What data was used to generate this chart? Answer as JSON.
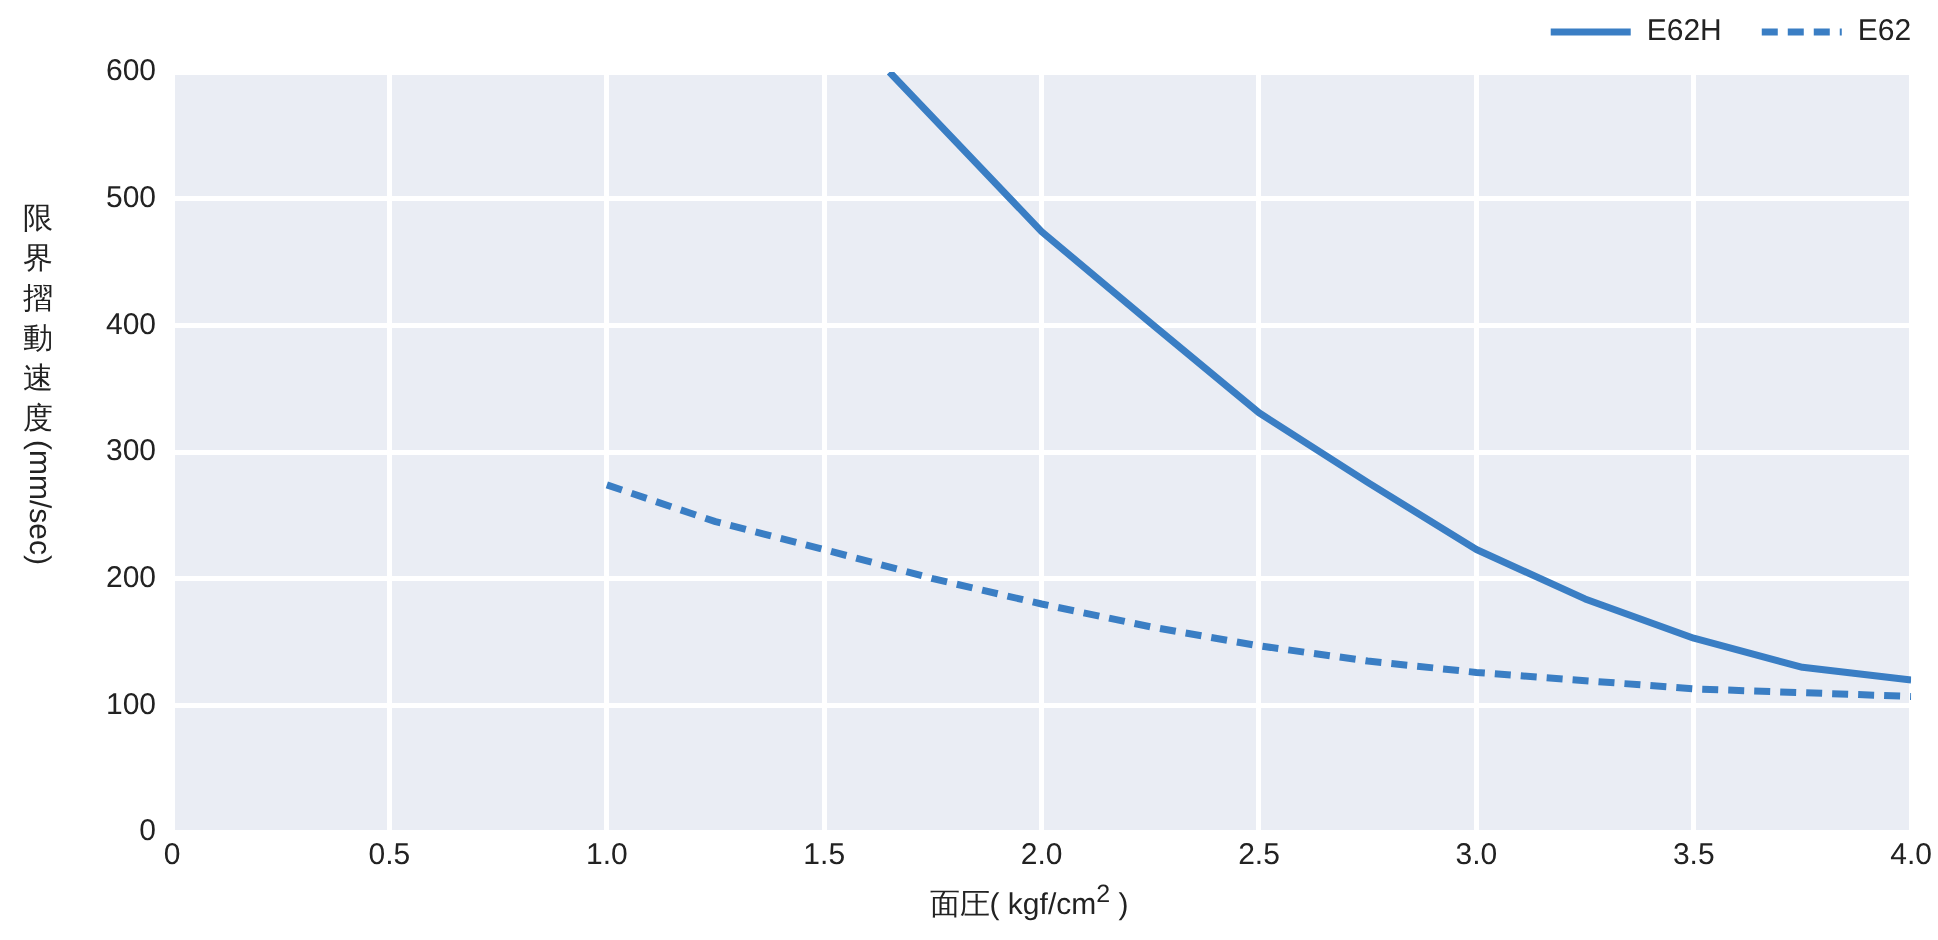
{
  "chart_data": {
    "type": "line",
    "xlabel": "面圧( kgf/cm$^{2}$ )",
    "ylabel": "限界摺動速度(mm/sec)",
    "xlim": [
      0,
      4
    ],
    "ylim": [
      0,
      600
    ],
    "xticks": [
      0,
      0.5,
      {
        "value": 1,
        "label": "1.0"
      },
      1.5,
      {
        "value": 2,
        "label": "2.0"
      },
      2.5,
      {
        "value": 3,
        "label": "3.0"
      },
      3.5,
      {
        "value": 4,
        "label": "4.0"
      }
    ],
    "yticks": [
      0,
      100,
      200,
      300,
      400,
      500,
      600
    ],
    "grid": true,
    "legend": "top right",
    "marker": "none",
    "series": [
      {
        "name": "E62H",
        "color": "#3a7ec4",
        "line_style": "solid",
        "x": [
          1.65,
          2.0,
          2.25,
          2.5,
          2.75,
          3.0,
          3.25,
          3.5,
          3.75,
          4.0
        ],
        "values": [
          600,
          474,
          402,
          331,
          276,
          223,
          184,
          153,
          130,
          120
        ]
      },
      {
        "name": "E62",
        "color": "#3a7ec4",
        "line_style": "dashed",
        "x": [
          1.0,
          1.25,
          1.5,
          1.75,
          2.0,
          2.25,
          2.5,
          2.75,
          3.0,
          3.5,
          4.0
        ],
        "values": [
          274,
          245,
          223,
          200,
          180,
          162,
          147,
          135,
          126,
          113,
          107
        ]
      }
    ]
  }
}
